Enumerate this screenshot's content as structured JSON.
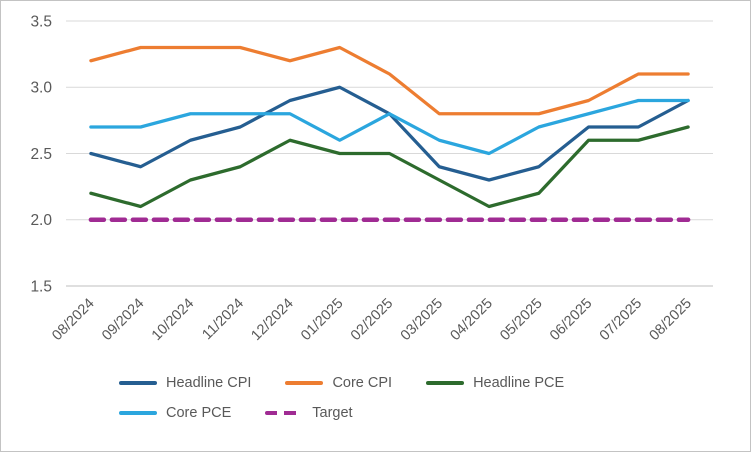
{
  "chart_data": {
    "type": "line",
    "title": "",
    "xlabel": "",
    "ylabel": "",
    "categories": [
      "08/2024",
      "09/2024",
      "10/2024",
      "11/2024",
      "12/2024",
      "01/2025",
      "02/2025",
      "03/2025",
      "04/2025",
      "05/2025",
      "06/2025",
      "07/2025",
      "08/2025"
    ],
    "series": [
      {
        "name": "Headline CPI",
        "color": "#255E91",
        "dash": false,
        "values": [
          2.5,
          2.4,
          2.6,
          2.7,
          2.9,
          3.0,
          2.8,
          2.4,
          2.3,
          2.4,
          2.7,
          2.7,
          2.9
        ]
      },
      {
        "name": "Core CPI",
        "color": "#ED7D31",
        "dash": false,
        "values": [
          3.2,
          3.3,
          3.3,
          3.3,
          3.2,
          3.3,
          3.1,
          2.8,
          2.8,
          2.8,
          2.9,
          3.1,
          3.1
        ]
      },
      {
        "name": "Headline PCE",
        "color": "#2D6B2D",
        "dash": false,
        "values": [
          2.2,
          2.1,
          2.3,
          2.4,
          2.6,
          2.5,
          2.5,
          2.3,
          2.1,
          2.2,
          2.6,
          2.6,
          2.7
        ]
      },
      {
        "name": "Core PCE",
        "color": "#2BA6DE",
        "dash": false,
        "values": [
          2.7,
          2.7,
          2.8,
          2.8,
          2.8,
          2.6,
          2.8,
          2.6,
          2.5,
          2.7,
          2.8,
          2.9,
          2.9
        ]
      },
      {
        "name": "Target",
        "color": "#A02B93",
        "dash": true,
        "values": [
          2.0,
          2.0,
          2.0,
          2.0,
          2.0,
          2.0,
          2.0,
          2.0,
          2.0,
          2.0,
          2.0,
          2.0,
          2.0
        ]
      }
    ],
    "ylim": [
      1.5,
      3.5
    ],
    "yticks": [
      "1.5",
      "2.0",
      "2.5",
      "3.0",
      "3.5"
    ],
    "grid": true,
    "legend_position": "bottom"
  },
  "colors": {
    "background": "#FFFFFF",
    "axis_text": "#595959",
    "gridline": "#D9D9D9",
    "axis_line": "#BFBFBF",
    "border": "#C3C3C3"
  }
}
